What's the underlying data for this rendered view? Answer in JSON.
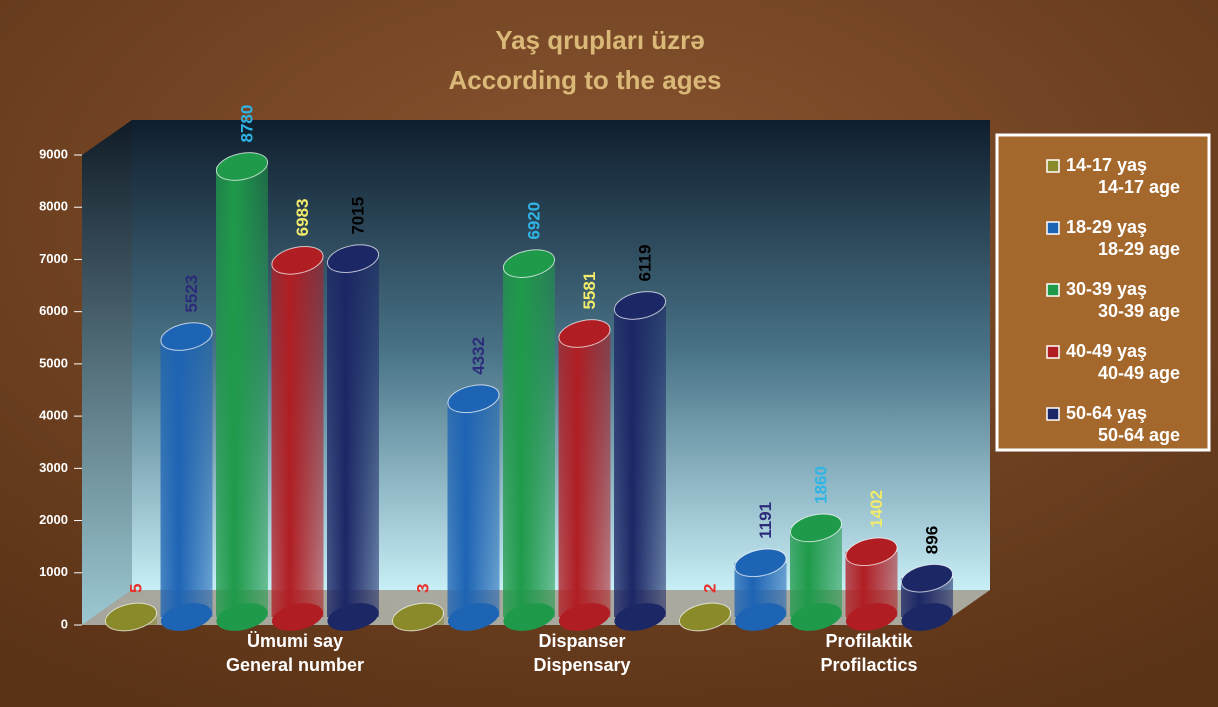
{
  "chart_data": {
    "type": "bar",
    "title": [
      "Yaş qrupları üzrə",
      "According to the ages"
    ],
    "categories": [
      [
        "Ümumi say",
        "General number"
      ],
      [
        "Dispanser",
        "Dispensary"
      ],
      [
        "Profilaktik",
        "Profilactics"
      ]
    ],
    "series": [
      {
        "name": [
          "14-17 yaş",
          "14-17 age"
        ],
        "color": "#8a8a2a",
        "label_color": "#e8302a",
        "values": [
          5,
          3,
          2
        ]
      },
      {
        "name": [
          "18-29 yaş",
          "18-29 age"
        ],
        "color": "#1e64b4",
        "label_color": "#2b2b7a",
        "values": [
          5523,
          4332,
          1191
        ]
      },
      {
        "name": [
          "30-39 yaş",
          "30-39 age"
        ],
        "color": "#1f9a4a",
        "label_color": "#2fb4e6",
        "values": [
          8780,
          6920,
          1860
        ]
      },
      {
        "name": [
          "40-49 yaş",
          "40-49 age"
        ],
        "color": "#b01e24",
        "label_color": "#f2ec6a",
        "values": [
          6983,
          5581,
          1402
        ]
      },
      {
        "name": [
          "50-64 yaş",
          "50-64 age"
        ],
        "color": "#1c2766",
        "label_color": "#000000",
        "values": [
          7015,
          6119,
          896
        ]
      }
    ],
    "ylim": [
      0,
      9000
    ],
    "yticks": [
      0,
      1000,
      2000,
      3000,
      4000,
      5000,
      6000,
      7000,
      8000,
      9000
    ],
    "legend": "right"
  }
}
